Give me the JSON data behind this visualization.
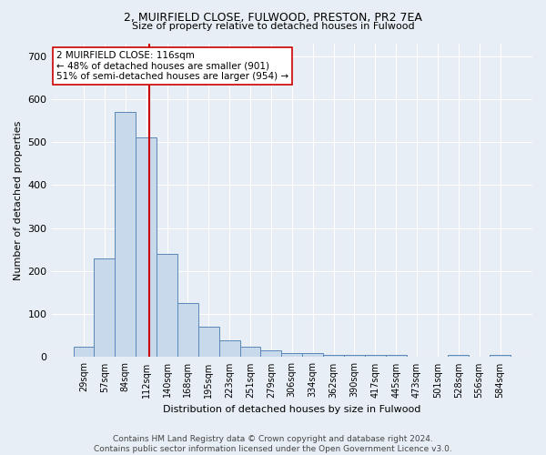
{
  "title1": "2, MUIRFIELD CLOSE, FULWOOD, PRESTON, PR2 7EA",
  "title2": "Size of property relative to detached houses in Fulwood",
  "xlabel": "Distribution of detached houses by size in Fulwood",
  "ylabel": "Number of detached properties",
  "footnote": "Contains HM Land Registry data © Crown copyright and database right 2024.\nContains public sector information licensed under the Open Government Licence v3.0.",
  "bar_labels": [
    "29sqm",
    "57sqm",
    "84sqm",
    "112sqm",
    "140sqm",
    "168sqm",
    "195sqm",
    "223sqm",
    "251sqm",
    "279sqm",
    "306sqm",
    "334sqm",
    "362sqm",
    "390sqm",
    "417sqm",
    "445sqm",
    "473sqm",
    "501sqm",
    "528sqm",
    "556sqm",
    "584sqm"
  ],
  "bar_values": [
    25,
    230,
    570,
    510,
    240,
    125,
    70,
    40,
    25,
    15,
    10,
    10,
    5,
    5,
    5,
    5,
    0,
    0,
    5,
    0,
    5
  ],
  "bar_color": "#c9d9ec",
  "bar_edge_color": "#5a87b8",
  "background_color": "#e8eef5",
  "grid_color": "#ffffff",
  "red_line_x": 3.14,
  "red_line_color": "#cc0000",
  "annotation_text": "2 MUIRFIELD CLOSE: 116sqm\n← 48% of detached houses are smaller (901)\n51% of semi-detached houses are larger (954) →",
  "annotation_box_color": "#ffffff",
  "annotation_box_edge": "#cc0000",
  "ylim": [
    0,
    730
  ],
  "yticks": [
    0,
    100,
    200,
    300,
    400,
    500,
    600,
    700
  ],
  "title1_fontsize": 9,
  "title2_fontsize": 8,
  "ylabel_fontsize": 8,
  "xlabel_fontsize": 8,
  "footnote_fontsize": 6.5
}
